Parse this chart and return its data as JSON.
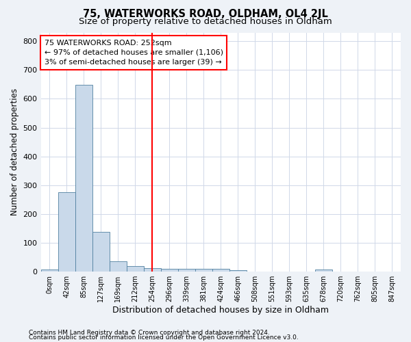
{
  "title": "75, WATERWORKS ROAD, OLDHAM, OL4 2JL",
  "subtitle": "Size of property relative to detached houses in Oldham",
  "xlabel": "Distribution of detached houses by size in Oldham",
  "ylabel": "Number of detached properties",
  "bin_labels": [
    "0sqm",
    "42sqm",
    "85sqm",
    "127sqm",
    "169sqm",
    "212sqm",
    "254sqm",
    "296sqm",
    "339sqm",
    "381sqm",
    "424sqm",
    "466sqm",
    "508sqm",
    "551sqm",
    "593sqm",
    "635sqm",
    "678sqm",
    "720sqm",
    "762sqm",
    "805sqm",
    "847sqm"
  ],
  "bar_heights": [
    8,
    275,
    648,
    137,
    35,
    20,
    12,
    10,
    10,
    10,
    10,
    5,
    0,
    0,
    0,
    0,
    8,
    0,
    0,
    0,
    0
  ],
  "bar_color": "#c9d9ea",
  "bar_edge_color": "#5080a0",
  "property_line_index": 6,
  "annotation_line1": "75 WATERWORKS ROAD: 252sqm",
  "annotation_line2": "← 97% of detached houses are smaller (1,106)",
  "annotation_line3": "3% of semi-detached houses are larger (39) →",
  "annotation_box_color": "white",
  "annotation_box_edge_color": "red",
  "vline_color": "red",
  "ylim": [
    0,
    830
  ],
  "yticks": [
    0,
    100,
    200,
    300,
    400,
    500,
    600,
    700,
    800
  ],
  "footer_line1": "Contains HM Land Registry data © Crown copyright and database right 2024.",
  "footer_line2": "Contains public sector information licensed under the Open Government Licence v3.0.",
  "bg_color": "#eef2f7",
  "plot_bg_color": "#ffffff",
  "grid_color": "#d0d8e8",
  "title_fontsize": 10.5,
  "subtitle_fontsize": 9.5,
  "tick_fontsize": 7,
  "ylabel_fontsize": 8.5,
  "xlabel_fontsize": 9,
  "annotation_fontsize": 8,
  "footer_fontsize": 6.5
}
